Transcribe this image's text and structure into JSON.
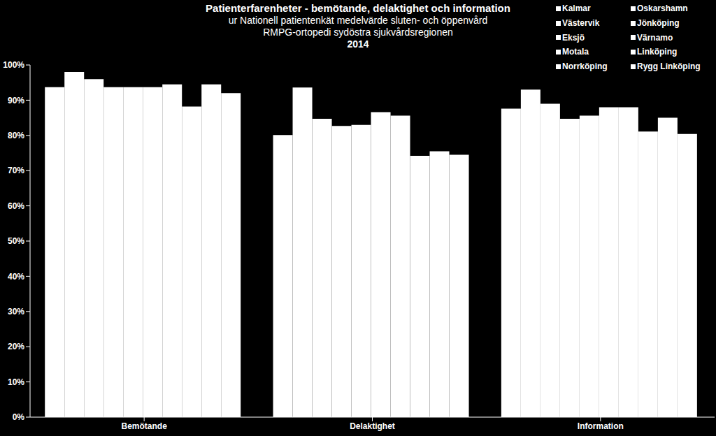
{
  "chart_data": {
    "type": "bar",
    "title": "Patienterfarenheter - bemötande, delaktighet och information",
    "subtitle": [
      "ur Nationell patientenkät medelvärde sluten- och öppenvård",
      "RMPG-ortopedi sydöstra sjukvårdsregionen",
      "2014"
    ],
    "categories": [
      "Bemötande",
      "Delaktighet",
      "Information"
    ],
    "series": [
      {
        "name": "Kalmar",
        "color": "#ffffff",
        "values": [
          93.7,
          80.1,
          87.6
        ]
      },
      {
        "name": "Oskarshamn",
        "color": "#ffffff",
        "values": [
          98,
          93.6,
          93
        ]
      },
      {
        "name": "Västervik",
        "color": "#ffffff",
        "values": [
          96,
          84.7,
          89
        ]
      },
      {
        "name": "Jönköping",
        "color": "#ffffff",
        "values": [
          93.7,
          82.7,
          84.7
        ]
      },
      {
        "name": "Eksjö",
        "color": "#ffffff",
        "values": [
          93.7,
          83,
          85.6
        ]
      },
      {
        "name": "Värnamo",
        "color": "#ffffff",
        "values": [
          93.7,
          86.6,
          88
        ]
      },
      {
        "name": "Motala",
        "color": "#ffffff",
        "values": [
          94.5,
          85.6,
          88
        ]
      },
      {
        "name": "Linköping",
        "color": "#ffffff",
        "values": [
          88.2,
          74.2,
          81.1
        ]
      },
      {
        "name": "Norrköping",
        "color": "#ffffff",
        "values": [
          94.5,
          75.5,
          85
        ]
      },
      {
        "name": "Rygg Linköping",
        "color": "#ffffff",
        "values": [
          92,
          74.5,
          80.4
        ]
      }
    ],
    "ylim": [
      0,
      100
    ],
    "yticks": [
      {
        "value": 0,
        "label": "0%"
      },
      {
        "value": 10,
        "label": "10%"
      },
      {
        "value": 20,
        "label": "20%"
      },
      {
        "value": 30,
        "label": "30%"
      },
      {
        "value": 40,
        "label": "40%"
      },
      {
        "value": 50,
        "label": "50%"
      },
      {
        "value": 60,
        "label": "60%"
      },
      {
        "value": 70,
        "label": "70%"
      },
      {
        "value": 80,
        "label": "80%"
      },
      {
        "value": 90,
        "label": "90%"
      },
      {
        "value": 100,
        "label": "100%"
      }
    ],
    "grid": false,
    "legend": "top-right"
  }
}
